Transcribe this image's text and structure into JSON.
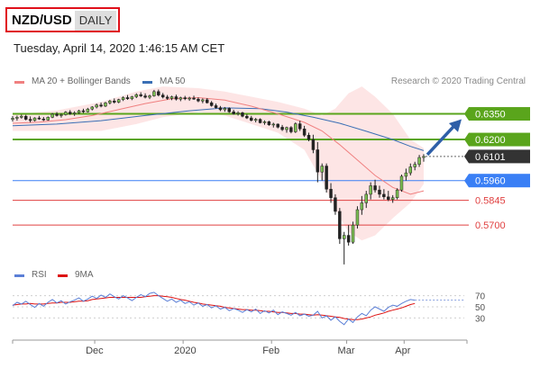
{
  "header": {
    "symbol": "NZD/USD",
    "timeframe": "DAILY",
    "timestamp": "Tuesday, April 14, 2020 1:46:15 AM CET"
  },
  "legend": {
    "ma20_label": "MA 20 + Bollinger Bands",
    "ma50_label": "MA 50",
    "credit": "Research © 2020 Trading Central"
  },
  "colors": {
    "ma20": "#f08080",
    "ma50": "#3a6fb5",
    "bollinger_fill": "#fde0e0",
    "resistance": "#5aa51c",
    "support": "#e04040",
    "pivot": "#3a7ff5",
    "last_price": "#333333",
    "arrow": "#2e5fa8",
    "rsi": "#5b7fd6",
    "rsi_ma": "#dd1111"
  },
  "chart_data": [
    {
      "type": "candlestick",
      "title": "NZD/USD",
      "x_labels": [
        "Dec",
        "2020",
        "Feb",
        "Mar",
        "Apr"
      ],
      "ylim": [
        0.548,
        0.65
      ],
      "candles": [
        [
          0.6318,
          0.6337,
          0.6305,
          0.6324
        ],
        [
          0.6324,
          0.634,
          0.631,
          0.633
        ],
        [
          0.633,
          0.6345,
          0.6322,
          0.6336
        ],
        [
          0.6336,
          0.6344,
          0.6312,
          0.6318
        ],
        [
          0.6318,
          0.6335,
          0.63,
          0.6311
        ],
        [
          0.6311,
          0.633,
          0.6306,
          0.6326
        ],
        [
          0.6326,
          0.6338,
          0.6315,
          0.632
        ],
        [
          0.632,
          0.6332,
          0.6308,
          0.6314
        ],
        [
          0.6314,
          0.6335,
          0.631,
          0.633
        ],
        [
          0.633,
          0.6355,
          0.6325,
          0.6348
        ],
        [
          0.6348,
          0.636,
          0.6334,
          0.634
        ],
        [
          0.634,
          0.6352,
          0.6328,
          0.6345
        ],
        [
          0.6345,
          0.6366,
          0.634,
          0.636
        ],
        [
          0.636,
          0.6372,
          0.6344,
          0.635
        ],
        [
          0.635,
          0.6365,
          0.6338,
          0.6356
        ],
        [
          0.6356,
          0.6374,
          0.635,
          0.6368
        ],
        [
          0.6368,
          0.638,
          0.6355,
          0.6362
        ],
        [
          0.6362,
          0.6385,
          0.6358,
          0.6378
        ],
        [
          0.6378,
          0.6395,
          0.637,
          0.639
        ],
        [
          0.639,
          0.641,
          0.6382,
          0.6402
        ],
        [
          0.6402,
          0.6416,
          0.6388,
          0.6395
        ],
        [
          0.6395,
          0.642,
          0.639,
          0.6414
        ],
        [
          0.6414,
          0.6432,
          0.6405,
          0.6425
        ],
        [
          0.6425,
          0.644,
          0.641,
          0.6418
        ],
        [
          0.6418,
          0.6438,
          0.6412,
          0.6433
        ],
        [
          0.6433,
          0.6452,
          0.6425,
          0.6445
        ],
        [
          0.6445,
          0.646,
          0.6432,
          0.6438
        ],
        [
          0.6438,
          0.6455,
          0.643,
          0.645
        ],
        [
          0.645,
          0.647,
          0.6442,
          0.6462
        ],
        [
          0.6462,
          0.6476,
          0.6448,
          0.6455
        ],
        [
          0.6455,
          0.647,
          0.644,
          0.6447
        ],
        [
          0.6447,
          0.6462,
          0.6436,
          0.6455
        ],
        [
          0.6455,
          0.649,
          0.645,
          0.648
        ],
        [
          0.648,
          0.6492,
          0.6452,
          0.646
        ],
        [
          0.646,
          0.6472,
          0.644,
          0.6448
        ],
        [
          0.6448,
          0.646,
          0.6432,
          0.644
        ],
        [
          0.644,
          0.6456,
          0.643,
          0.645
        ],
        [
          0.645,
          0.6462,
          0.6428,
          0.6436
        ],
        [
          0.6436,
          0.645,
          0.6424,
          0.6444
        ],
        [
          0.6444,
          0.6455,
          0.643,
          0.6438
        ],
        [
          0.6438,
          0.645,
          0.6426,
          0.6442
        ],
        [
          0.6442,
          0.6456,
          0.6432,
          0.6436
        ],
        [
          0.6436,
          0.6446,
          0.6418,
          0.6425
        ],
        [
          0.6425,
          0.644,
          0.6412,
          0.6432
        ],
        [
          0.6432,
          0.6442,
          0.641,
          0.6415
        ],
        [
          0.6415,
          0.6425,
          0.6392,
          0.6398
        ],
        [
          0.6398,
          0.641,
          0.638,
          0.6386
        ],
        [
          0.6386,
          0.6396,
          0.6366,
          0.6374
        ],
        [
          0.6374,
          0.639,
          0.6362,
          0.6382
        ],
        [
          0.6382,
          0.6388,
          0.6356,
          0.6362
        ],
        [
          0.6362,
          0.6374,
          0.6345,
          0.635
        ],
        [
          0.635,
          0.6365,
          0.634,
          0.6356
        ],
        [
          0.6356,
          0.6362,
          0.633,
          0.6336
        ],
        [
          0.6336,
          0.6348,
          0.632,
          0.6326
        ],
        [
          0.6326,
          0.6338,
          0.6306,
          0.6312
        ],
        [
          0.6312,
          0.6326,
          0.63,
          0.6318
        ],
        [
          0.6318,
          0.6324,
          0.6294,
          0.6298
        ],
        [
          0.6298,
          0.6312,
          0.6286,
          0.6304
        ],
        [
          0.6304,
          0.631,
          0.628,
          0.6286
        ],
        [
          0.6286,
          0.6298,
          0.627,
          0.629
        ],
        [
          0.629,
          0.6294,
          0.6265,
          0.6272
        ],
        [
          0.6272,
          0.6285,
          0.625,
          0.6258
        ],
        [
          0.6258,
          0.6275,
          0.624,
          0.627
        ],
        [
          0.627,
          0.6278,
          0.6236,
          0.6245
        ],
        [
          0.6245,
          0.63,
          0.6238,
          0.6292
        ],
        [
          0.6292,
          0.631,
          0.625,
          0.6262
        ],
        [
          0.6262,
          0.628,
          0.6215,
          0.6225
        ],
        [
          0.6225,
          0.624,
          0.619,
          0.62
        ],
        [
          0.62,
          0.6228,
          0.612,
          0.614
        ],
        [
          0.614,
          0.6185,
          0.595,
          0.601
        ],
        [
          0.601,
          0.606,
          0.596,
          0.6045
        ],
        [
          0.6045,
          0.606,
          0.589,
          0.591
        ],
        [
          0.591,
          0.5945,
          0.583,
          0.586
        ],
        [
          0.586,
          0.588,
          0.576,
          0.578
        ],
        [
          0.578,
          0.58,
          0.559,
          0.562
        ],
        [
          0.562,
          0.566,
          0.547,
          0.564
        ],
        [
          0.564,
          0.57,
          0.558,
          0.56
        ],
        [
          0.56,
          0.572,
          0.559,
          0.57
        ],
        [
          0.57,
          0.581,
          0.568,
          0.579
        ],
        [
          0.579,
          0.587,
          0.576,
          0.583
        ],
        [
          0.583,
          0.59,
          0.58,
          0.588
        ],
        [
          0.588,
          0.595,
          0.585,
          0.593
        ],
        [
          0.593,
          0.5965,
          0.589,
          0.5905
        ],
        [
          0.5905,
          0.593,
          0.586,
          0.588
        ],
        [
          0.588,
          0.591,
          0.585,
          0.5865
        ],
        [
          0.5865,
          0.59,
          0.584,
          0.585
        ],
        [
          0.585,
          0.5875,
          0.583,
          0.586
        ],
        [
          0.586,
          0.5915,
          0.585,
          0.5905
        ],
        [
          0.5905,
          0.5995,
          0.5895,
          0.5985
        ],
        [
          0.5985,
          0.603,
          0.596,
          0.6005
        ],
        [
          0.6005,
          0.606,
          0.599,
          0.604
        ],
        [
          0.604,
          0.607,
          0.602,
          0.6055
        ],
        [
          0.6055,
          0.611,
          0.604,
          0.6095
        ],
        [
          0.6095,
          0.6115,
          0.607,
          0.6101
        ]
      ],
      "ma20": [
        [
          0,
          0.6295
        ],
        [
          6,
          0.6302
        ],
        [
          12,
          0.6316
        ],
        [
          18,
          0.634
        ],
        [
          24,
          0.6375
        ],
        [
          30,
          0.641
        ],
        [
          36,
          0.6438
        ],
        [
          42,
          0.6445
        ],
        [
          48,
          0.643
        ],
        [
          54,
          0.6395
        ],
        [
          60,
          0.635
        ],
        [
          66,
          0.63
        ],
        [
          70,
          0.625
        ],
        [
          74,
          0.617
        ],
        [
          78,
          0.608
        ],
        [
          82,
          0.599
        ],
        [
          86,
          0.592
        ],
        [
          90,
          0.588
        ],
        [
          93,
          0.59
        ]
      ],
      "ma50": [
        [
          0,
          0.628
        ],
        [
          10,
          0.629
        ],
        [
          20,
          0.631
        ],
        [
          30,
          0.634
        ],
        [
          40,
          0.6368
        ],
        [
          48,
          0.6385
        ],
        [
          56,
          0.638
        ],
        [
          62,
          0.636
        ],
        [
          68,
          0.633
        ],
        [
          74,
          0.6295
        ],
        [
          80,
          0.6248
        ],
        [
          86,
          0.62
        ],
        [
          90,
          0.616
        ],
        [
          93,
          0.6135
        ]
      ],
      "bollinger_upper": [
        [
          0,
          0.6345
        ],
        [
          10,
          0.637
        ],
        [
          20,
          0.642
        ],
        [
          28,
          0.648
        ],
        [
          34,
          0.651
        ],
        [
          42,
          0.65
        ],
        [
          48,
          0.648
        ],
        [
          54,
          0.645
        ],
        [
          60,
          0.642
        ],
        [
          66,
          0.638
        ],
        [
          70,
          0.634
        ],
        [
          73,
          0.638
        ],
        [
          76,
          0.647
        ],
        [
          79,
          0.651
        ],
        [
          82,
          0.645
        ],
        [
          86,
          0.635
        ],
        [
          90,
          0.62
        ],
        [
          93,
          0.615
        ]
      ],
      "bollinger_lower": [
        [
          93,
          0.594
        ],
        [
          90,
          0.583
        ],
        [
          86,
          0.574
        ],
        [
          82,
          0.564
        ],
        [
          79,
          0.561
        ],
        [
          76,
          0.566
        ],
        [
          73,
          0.579
        ],
        [
          70,
          0.596
        ],
        [
          66,
          0.614
        ],
        [
          60,
          0.624
        ],
        [
          54,
          0.629
        ],
        [
          48,
          0.634
        ],
        [
          42,
          0.636
        ],
        [
          34,
          0.633
        ],
        [
          28,
          0.629
        ],
        [
          20,
          0.625
        ],
        [
          10,
          0.625
        ],
        [
          0,
          0.625
        ]
      ],
      "levels": [
        {
          "value": 0.635,
          "label": "0.6350",
          "kind": "resistance"
        },
        {
          "value": 0.62,
          "label": "0.6200",
          "kind": "resistance"
        },
        {
          "value": 0.6101,
          "label": "0.6101",
          "kind": "last"
        },
        {
          "value": 0.596,
          "label": "0.5960",
          "kind": "pivot"
        },
        {
          "value": 0.5845,
          "label": "0.5845",
          "kind": "support"
        },
        {
          "value": 0.57,
          "label": "0.5700",
          "kind": "support"
        }
      ]
    },
    {
      "type": "line",
      "title": "RSI",
      "ylim": [
        0,
        100
      ],
      "y_ticks": [
        70,
        50,
        30
      ],
      "series": [
        {
          "name": "RSI",
          "values": [
            52,
            58,
            55,
            60,
            54,
            49,
            56,
            51,
            58,
            63,
            57,
            61,
            55,
            59,
            62,
            66,
            60,
            64,
            69,
            65,
            71,
            67,
            73,
            68,
            64,
            70,
            66,
            61,
            67,
            72,
            68,
            74,
            76,
            70,
            65,
            60,
            64,
            58,
            62,
            56,
            59,
            53,
            57,
            51,
            54,
            48,
            52,
            46,
            49,
            43,
            47,
            44,
            40,
            45,
            41,
            46,
            38,
            43,
            39,
            44,
            36,
            41,
            38,
            35,
            40,
            34,
            37,
            33,
            35,
            42,
            30,
            34,
            26,
            32,
            24,
            18,
            28,
            22,
            32,
            38,
            34,
            44,
            50,
            46,
            42,
            49,
            53,
            51,
            56,
            60,
            63,
            62
          ]
        },
        {
          "name": "9MA",
          "values": [
            53,
            54,
            55,
            55,
            56,
            55,
            55,
            55,
            56,
            57,
            57,
            58,
            58,
            58,
            59,
            60,
            60,
            61,
            63,
            64,
            65,
            66,
            67,
            67,
            67,
            67,
            67,
            67,
            67,
            67,
            68,
            69,
            70,
            70,
            69,
            68,
            67,
            65,
            63,
            62,
            60,
            58,
            57,
            55,
            54,
            53,
            52,
            51,
            49,
            48,
            47,
            46,
            45,
            45,
            44,
            44,
            43,
            42,
            42,
            41,
            40,
            40,
            39,
            38,
            38,
            37,
            37,
            36,
            35,
            36,
            35,
            34,
            33,
            32,
            31,
            29,
            28,
            27,
            27,
            28,
            30,
            32,
            35,
            37,
            39,
            42,
            44,
            46,
            48,
            51,
            54,
            56
          ]
        }
      ]
    }
  ]
}
